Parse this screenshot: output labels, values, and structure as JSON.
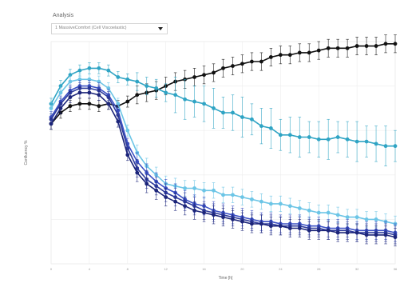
{
  "header": {
    "title": "Analysis",
    "dropdown_value": "1 MassiveComfort (Cell Viscoelastic)"
  },
  "chart_data": {
    "type": "line",
    "xlabel": "Time [h]",
    "ylabel": "Confluency %",
    "xlim": [
      0,
      36
    ],
    "ylim": [
      0,
      100
    ],
    "grid": true,
    "x": [
      0,
      1,
      2,
      3,
      4,
      5,
      6,
      7,
      8,
      9,
      10,
      11,
      12,
      13,
      14,
      15,
      16,
      17,
      18,
      19,
      20,
      21,
      22,
      23,
      24,
      25,
      26,
      27,
      28,
      29,
      30,
      31,
      32,
      33,
      34,
      35,
      36
    ],
    "series": [
      {
        "color": "#111111",
        "values": [
          63,
          68,
          71,
          72,
          72,
          71,
          72,
          71,
          73,
          76,
          77,
          78,
          80,
          82,
          83,
          84,
          85,
          86,
          88,
          89,
          90,
          91,
          91,
          93,
          94,
          94,
          95,
          95,
          96,
          97,
          97,
          97,
          98,
          98,
          98,
          99,
          99
        ]
      },
      {
        "color": "#2fa4c4",
        "values": [
          72,
          80,
          85,
          87,
          88,
          88,
          87,
          84,
          83,
          82,
          80,
          79,
          77,
          76,
          74,
          73,
          72,
          70,
          68,
          68,
          66,
          65,
          62,
          61,
          58,
          58,
          57,
          57,
          56,
          56,
          57,
          56,
          55,
          55,
          54,
          53,
          53
        ]
      },
      {
        "color": "#6cc5e6",
        "values": [
          70,
          77,
          82,
          83,
          83,
          82,
          79,
          72,
          60,
          50,
          44,
          40,
          36,
          35,
          34,
          34,
          33,
          33,
          31,
          31,
          30,
          29,
          28,
          27,
          27,
          26,
          25,
          24,
          23,
          23,
          22,
          21,
          21,
          20,
          20,
          19,
          18
        ]
      },
      {
        "color": "#3b50c4",
        "values": [
          66,
          73,
          78,
          80,
          80,
          79,
          76,
          69,
          54,
          46,
          41,
          37,
          34,
          32,
          29,
          27,
          26,
          24,
          23,
          22,
          21,
          20,
          19,
          19,
          18,
          18,
          18,
          17,
          17,
          16,
          16,
          16,
          15,
          15,
          15,
          15,
          14
        ]
      },
      {
        "color": "#2e3b9c",
        "values": [
          65,
          72,
          77,
          79,
          79,
          78,
          75,
          67,
          52,
          43,
          38,
          35,
          32,
          30,
          28,
          26,
          24,
          23,
          22,
          21,
          20,
          19,
          18,
          18,
          17,
          17,
          17,
          16,
          16,
          15,
          15,
          15,
          14,
          14,
          14,
          14,
          13
        ]
      },
      {
        "color": "#1c257a",
        "values": [
          63,
          70,
          75,
          77,
          77,
          76,
          72,
          64,
          49,
          41,
          36,
          33,
          30,
          28,
          26,
          24,
          23,
          22,
          21,
          20,
          19,
          18,
          18,
          17,
          17,
          16,
          16,
          15,
          15,
          15,
          14,
          14,
          14,
          13,
          13,
          13,
          12
        ]
      }
    ]
  }
}
